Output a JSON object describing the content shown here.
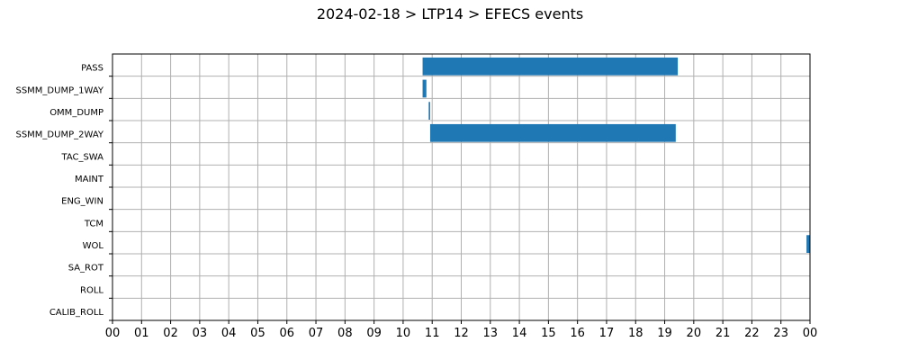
{
  "chart_data": {
    "type": "bar",
    "orientation": "horizontal",
    "title": "2024-02-18 > LTP14 > EFECS events",
    "xlabel": "",
    "ylabel": "",
    "xlim": [
      0,
      24
    ],
    "x_tick_labels": [
      "00",
      "01",
      "02",
      "03",
      "04",
      "05",
      "06",
      "07",
      "08",
      "09",
      "10",
      "11",
      "12",
      "13",
      "14",
      "15",
      "16",
      "17",
      "18",
      "19",
      "20",
      "21",
      "22",
      "23",
      "00"
    ],
    "categories": [
      "PASS",
      "SSMM_DUMP_1WAY",
      "OMM_DUMP",
      "SSMM_DUMP_2WAY",
      "TAC_SWA",
      "MAINT",
      "ENG_WIN",
      "TCM",
      "WOL",
      "SA_ROT",
      "ROLL",
      "CALIB_ROLL"
    ],
    "grid": true,
    "bar_color": "#1f77b4",
    "events": [
      {
        "category": "PASS",
        "start": 10.67,
        "end": 19.45
      },
      {
        "category": "SSMM_DUMP_1WAY",
        "start": 10.67,
        "end": 10.8
      },
      {
        "category": "OMM_DUMP",
        "start": 10.88,
        "end": 10.93
      },
      {
        "category": "SSMM_DUMP_2WAY",
        "start": 10.93,
        "end": 19.38
      },
      {
        "category": "WOL",
        "start": 23.88,
        "end": 24.0
      }
    ]
  }
}
